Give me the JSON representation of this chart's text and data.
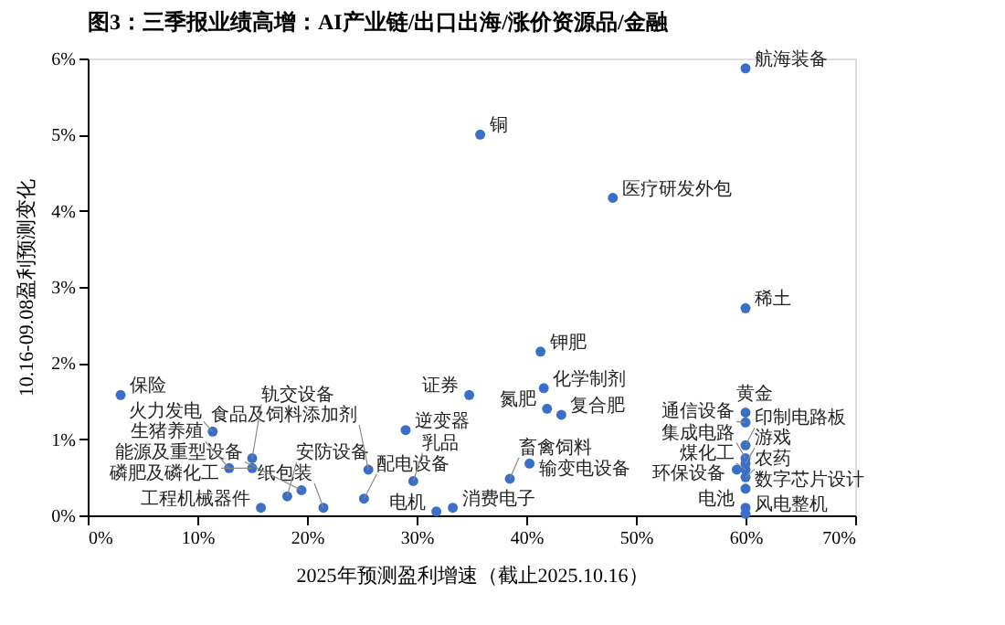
{
  "chart_data": {
    "type": "scatter",
    "title": "图3：三季报业绩高增：AI产业链/出口出海/涨价资源品/金融",
    "xlabel": "2025年预测盈利增速（截止2025.10.16）",
    "ylabel": "10.16-09.08盈利预测变化",
    "xlim": [
      0,
      70
    ],
    "xticks": [
      {
        "value": 0,
        "label": "0%"
      },
      {
        "value": 10,
        "label": "10%"
      },
      {
        "value": 20,
        "label": "20%"
      },
      {
        "value": 30,
        "label": "30%"
      },
      {
        "value": 40,
        "label": "40%"
      },
      {
        "value": 50,
        "label": "50%"
      },
      {
        "value": 60,
        "label": "60%"
      },
      {
        "value": 70,
        "label": "70%"
      }
    ],
    "ylim": [
      0,
      6
    ],
    "yticks": [
      {
        "value": 0,
        "label": "0%"
      },
      {
        "value": 1,
        "label": "1%"
      },
      {
        "value": 2,
        "label": "2%"
      },
      {
        "value": 3,
        "label": "3%"
      },
      {
        "value": 4,
        "label": "4%"
      },
      {
        "value": 5,
        "label": "5%"
      },
      {
        "value": 6,
        "label": "6%"
      }
    ],
    "grid": false,
    "marker": "circle",
    "series": [
      {
        "color": "#3a6fc9",
        "x": [
          60,
          35.8,
          47.9,
          60,
          41.3,
          41.6,
          3.0,
          34.8,
          41.9,
          43.2,
          11.4,
          29.0,
          15.0,
          12.9,
          15.0,
          25.6,
          40.3,
          29.7,
          38.5,
          19.5,
          18.2,
          25.2,
          15.8,
          21.5,
          31.8,
          33.3,
          60,
          60,
          60,
          60,
          60,
          59.2,
          60,
          60,
          60,
          60,
          60
        ],
        "values": [
          5.87,
          5.0,
          4.17,
          2.72,
          2.15,
          1.67,
          1.58,
          1.58,
          1.4,
          1.32,
          1.1,
          1.12,
          0.75,
          0.62,
          0.62,
          0.6,
          0.68,
          0.45,
          0.48,
          0.33,
          0.25,
          0.22,
          0.1,
          0.1,
          0.05,
          0.1,
          1.35,
          1.22,
          0.92,
          0.75,
          0.68,
          0.6,
          0.6,
          0.5,
          0.35,
          0.1,
          0.02
        ]
      }
    ],
    "annotations": [
      {
        "text": "航海装备",
        "x": 60,
        "y": 5.87
      },
      {
        "text": "铜",
        "x": 35.8,
        "y": 5.0
      },
      {
        "text": "医疗研发外包",
        "x": 47.9,
        "y": 4.17
      },
      {
        "text": "稀土",
        "x": 60,
        "y": 2.72
      },
      {
        "text": "钾肥",
        "x": 41.3,
        "y": 2.15
      },
      {
        "text": "化学制剂",
        "x": 41.6,
        "y": 1.67
      },
      {
        "text": "保险",
        "x": 3.0,
        "y": 1.58
      },
      {
        "text": "证券",
        "x": 34.8,
        "y": 1.58
      },
      {
        "text": "氮肥",
        "x": 41.9,
        "y": 1.4
      },
      {
        "text": "复合肥",
        "x": 43.2,
        "y": 1.32
      },
      {
        "text": "火力发电",
        "x": 11.4,
        "y": 1.1
      },
      {
        "text": "逆变器",
        "x": 29.0,
        "y": 1.12
      },
      {
        "text": "轨交设备",
        "x": 15.0,
        "y": 0.75
      },
      {
        "text": "生猪养殖",
        "x": 12.9,
        "y": 0.62
      },
      {
        "text": "磷肥及磷化工",
        "x": 15.0,
        "y": 0.62
      },
      {
        "text": "食品及饲料添加剂",
        "x": 25.6,
        "y": 0.6
      },
      {
        "text": "输变电设备",
        "x": 40.3,
        "y": 0.68
      },
      {
        "text": "乳品",
        "x": 29.7,
        "y": 0.45
      },
      {
        "text": "畜禽饲料",
        "x": 38.5,
        "y": 0.48
      },
      {
        "text": "能源及重型设备",
        "x": 19.5,
        "y": 0.33
      },
      {
        "text": "安防设备",
        "x": 18.2,
        "y": 0.25
      },
      {
        "text": "配电设备",
        "x": 25.2,
        "y": 0.22
      },
      {
        "text": "工程机械器件",
        "x": 15.8,
        "y": 0.1
      },
      {
        "text": "纸包装",
        "x": 21.5,
        "y": 0.1
      },
      {
        "text": "电机",
        "x": 31.8,
        "y": 0.05
      },
      {
        "text": "消费电子",
        "x": 33.3,
        "y": 0.1
      },
      {
        "text": "黄金",
        "x": 60,
        "y": 1.35
      },
      {
        "text": "通信设备",
        "x": 60,
        "y": 1.22
      },
      {
        "text": "印制电路板",
        "x": 60,
        "y": 0.92
      },
      {
        "text": "集成电路",
        "x": 60,
        "y": 0.75
      },
      {
        "text": "游戏",
        "x": 60,
        "y": 0.68
      },
      {
        "text": "环保设备",
        "x": 59.2,
        "y": 0.6
      },
      {
        "text": "煤化工",
        "x": 60,
        "y": 0.6
      },
      {
        "text": "农药",
        "x": 60,
        "y": 0.5
      },
      {
        "text": "数字芯片设计",
        "x": 60,
        "y": 0.35
      },
      {
        "text": "电池",
        "x": 60,
        "y": 0.1
      },
      {
        "text": "风电整机",
        "x": 60,
        "y": 0.02
      }
    ]
  }
}
